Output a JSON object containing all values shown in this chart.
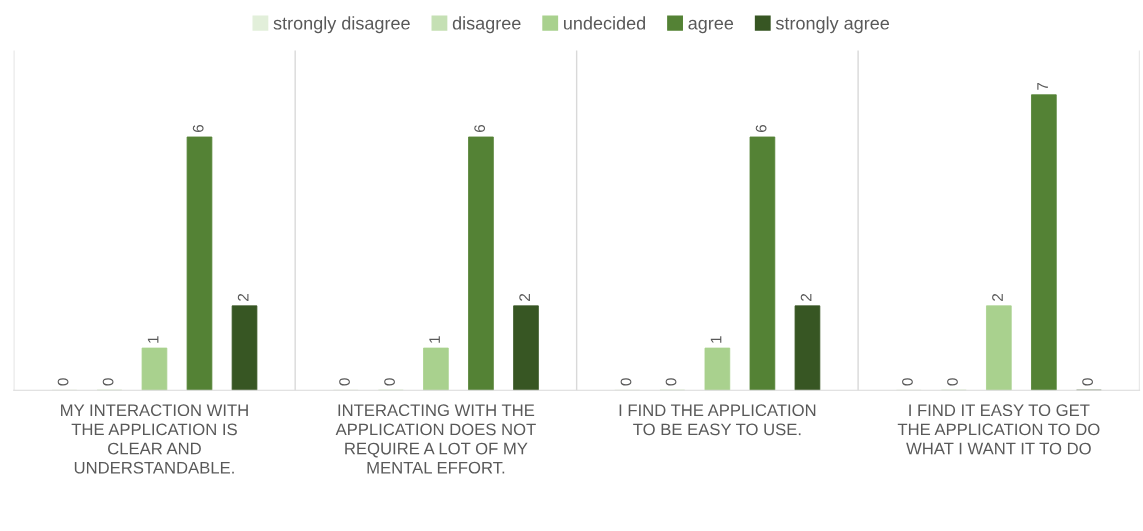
{
  "chart_data": {
    "type": "bar",
    "categories": [
      "MY INTERACTION WITH THE APPLICATION IS CLEAR AND UNDERSTANDABLE.",
      "INTERACTING WITH THE APPLICATION DOES NOT REQUIRE A LOT OF MY MENTAL EFFORT.",
      "I FIND THE APPLICATION TO BE EASY TO USE.",
      "I FIND IT EASY TO GET THE APPLICATION TO DO WHAT I WANT IT TO DO"
    ],
    "series": [
      {
        "name": "strongly disagree",
        "color": "#e2efda",
        "values": [
          0,
          0,
          0,
          0
        ]
      },
      {
        "name": "disagree",
        "color": "#c5e0b4",
        "values": [
          0,
          0,
          0,
          0
        ]
      },
      {
        "name": "undecided",
        "color": "#a9d18e",
        "values": [
          1,
          1,
          1,
          2
        ]
      },
      {
        "name": "agree",
        "color": "#548235",
        "values": [
          6,
          6,
          6,
          7
        ]
      },
      {
        "name": "strongly agree",
        "color": "#375623",
        "values": [
          2,
          2,
          2,
          0
        ]
      }
    ],
    "data_labels": true,
    "grid": "x",
    "legend": "top",
    "tick_labels": "x"
  }
}
